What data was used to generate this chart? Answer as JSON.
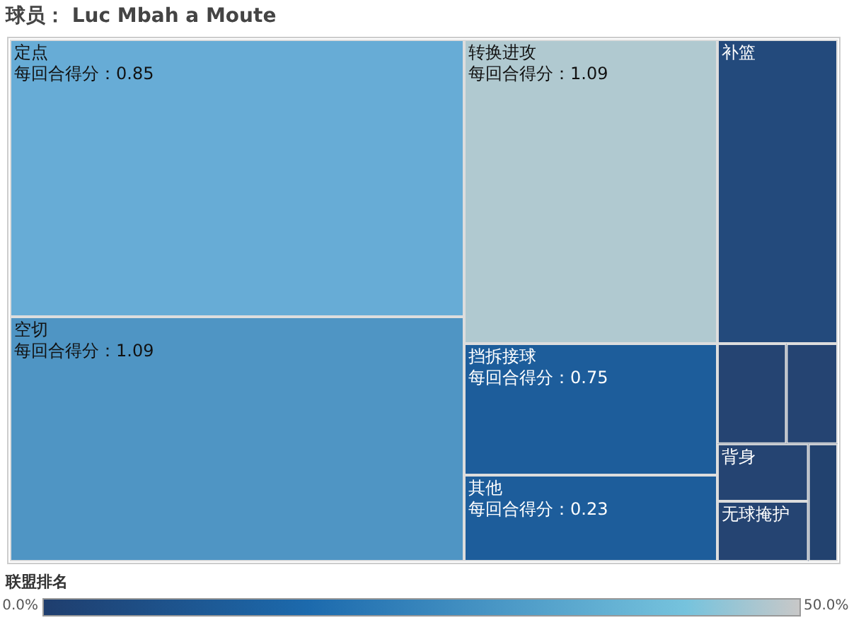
{
  "chart_data": {
    "type": "other",
    "title": "球员： Luc Mbah a Moute",
    "categories": [
      "定点",
      "空切",
      "转换进攻",
      "挡拆接球",
      "其他",
      "补篮",
      null,
      null,
      "背身",
      "无球掩护",
      null
    ],
    "values": [
      0.85,
      1.09,
      1.09,
      0.75,
      0.23,
      null,
      null,
      null,
      null,
      null,
      null
    ],
    "value_labels": [
      "每回合得分：0.85",
      "每回合得分：1.09",
      "每回合得分：1.09",
      "每回合得分：0.75",
      "每回合得分：0.23",
      null,
      null,
      null,
      null,
      null,
      null
    ],
    "colors": [
      "#67acd6",
      "#4f95c4",
      "#b0c9d0",
      "#1d5d9b",
      "#1d5d9b",
      "#234a7c",
      "#254472",
      "#254472",
      "#254472",
      "#254472",
      "#22426f"
    ],
    "clabel": "联盟排名",
    "annotations": [
      "0.0%",
      "50.0%"
    ]
  }
}
